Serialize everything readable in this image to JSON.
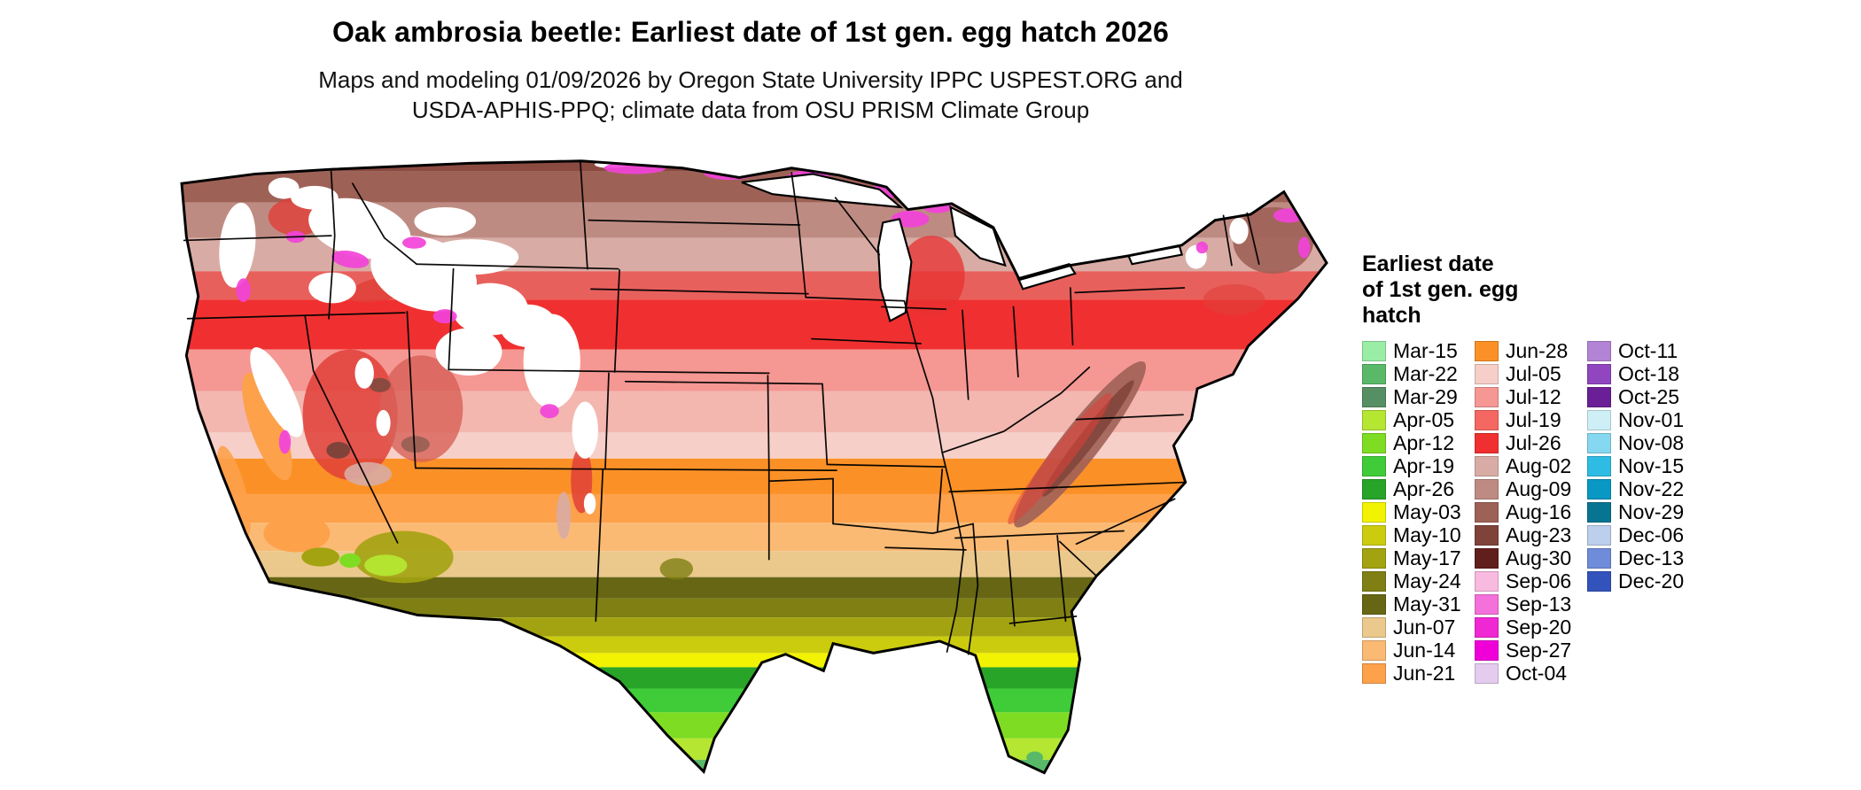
{
  "title": "Oak ambrosia beetle: Earliest date of 1st gen. egg hatch 2026",
  "subtitle": {
    "line1": "Maps and modeling 01/09/2026 by Oregon State University IPPC USPEST.ORG and",
    "line2": "USDA-APHIS-PPQ; climate data from OSU PRISM Climate Group"
  },
  "legend": {
    "title_lines": [
      "Earliest date",
      "of 1st gen. egg",
      "hatch"
    ],
    "columns": [
      {
        "entries": [
          {
            "label": "Mar-15",
            "color": "#99EDA5"
          },
          {
            "label": "Mar-22",
            "color": "#59B969"
          },
          {
            "label": "Mar-29",
            "color": "#568F63"
          },
          {
            "label": "Apr-05",
            "color": "#B4E632"
          },
          {
            "label": "Apr-12",
            "color": "#7EDC23"
          },
          {
            "label": "Apr-19",
            "color": "#3FCC38"
          },
          {
            "label": "Apr-26",
            "color": "#28A428"
          },
          {
            "label": "May-03",
            "color": "#F2F203"
          },
          {
            "label": "May-10",
            "color": "#CCCC0F"
          },
          {
            "label": "May-17",
            "color": "#A3A312"
          },
          {
            "label": "May-24",
            "color": "#7F7F14"
          },
          {
            "label": "May-31",
            "color": "#666614"
          },
          {
            "label": "Jun-07",
            "color": "#EBC98C"
          },
          {
            "label": "Jun-14",
            "color": "#FBBA74"
          },
          {
            "label": "Jun-21",
            "color": "#FDA14B"
          }
        ]
      },
      {
        "entries": [
          {
            "label": "Jun-28",
            "color": "#FB9126"
          },
          {
            "label": "Jul-05",
            "color": "#F6CFC8"
          },
          {
            "label": "Jul-12",
            "color": "#F59793"
          },
          {
            "label": "Jul-19",
            "color": "#F56762"
          },
          {
            "label": "Jul-26",
            "color": "#F03030"
          },
          {
            "label": "Aug-02",
            "color": "#D8ACA4"
          },
          {
            "label": "Aug-09",
            "color": "#BE8B82"
          },
          {
            "label": "Aug-16",
            "color": "#9E6156"
          },
          {
            "label": "Aug-23",
            "color": "#7F4339"
          },
          {
            "label": "Aug-30",
            "color": "#601F1B"
          },
          {
            "label": "Sep-06",
            "color": "#F9BADF"
          },
          {
            "label": "Sep-13",
            "color": "#F470DB"
          },
          {
            "label": "Sep-20",
            "color": "#F028D4"
          },
          {
            "label": "Sep-27",
            "color": "#EF00D9"
          },
          {
            "label": "Oct-04",
            "color": "#E3CCEE"
          }
        ]
      },
      {
        "entries": [
          {
            "label": "Oct-11",
            "color": "#B384D6"
          },
          {
            "label": "Oct-18",
            "color": "#9146C0"
          },
          {
            "label": "Oct-25",
            "color": "#6B1F96"
          },
          {
            "label": "Nov-01",
            "color": "#CFEFF7"
          },
          {
            "label": "Nov-08",
            "color": "#86D8F0"
          },
          {
            "label": "Nov-15",
            "color": "#2FBCE4"
          },
          {
            "label": "Nov-22",
            "color": "#0997C4"
          },
          {
            "label": "Nov-29",
            "color": "#077492"
          },
          {
            "label": "Dec-06",
            "color": "#BCCFEC"
          },
          {
            "label": "Dec-13",
            "color": "#6E8CD9"
          },
          {
            "label": "Dec-20",
            "color": "#3353BC"
          }
        ]
      }
    ]
  }
}
